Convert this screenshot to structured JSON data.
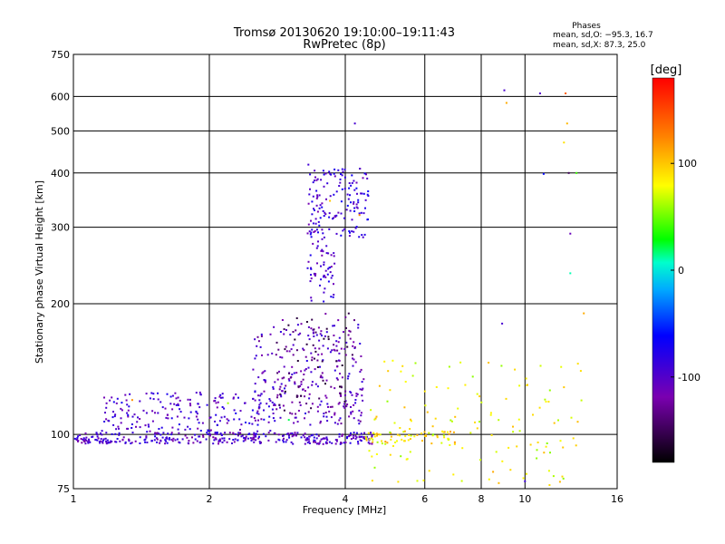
{
  "chart_data": {
    "type": "scatter",
    "title": "Tromsø 20130620 19:10:00–19:11:43",
    "subtitle": "RwPretec (8p)",
    "xlabel": "Frequency [MHz]",
    "ylabel": "Stationary phase Virtual Height [km]",
    "x_scale": "log",
    "y_scale": "log",
    "xlim": [
      1,
      16
    ],
    "ylim": [
      75,
      750
    ],
    "x_ticks": [
      1,
      2,
      4,
      6,
      8,
      10,
      16
    ],
    "x_tick_labels": [
      "1",
      "2",
      "4",
      "6",
      "8",
      "10",
      "16"
    ],
    "y_ticks": [
      75,
      100,
      200,
      300,
      400,
      500,
      600,
      750
    ],
    "y_tick_labels": [
      "75",
      "100",
      "200",
      "300",
      "400",
      "500",
      "600",
      "750"
    ],
    "grid": true,
    "legend": {
      "heading": "Phases",
      "lines": [
        "mean, sd,O: −95.3, 16.7",
        "mean, sd,X:  87.3, 25.0"
      ],
      "placement": "top-right"
    },
    "colorbar": {
      "label": "[deg]",
      "range": [
        -180,
        180
      ],
      "ticks": [
        100,
        0,
        -100
      ],
      "tick_labels": [
        "100",
        "0",
        "-100"
      ]
    },
    "traces": [
      {
        "x_range": [
          1.0,
          4.6
        ],
        "y_range": [
          95,
          101
        ],
        "phase": -100,
        "count": 340
      },
      {
        "x_range": [
          1.15,
          2.8
        ],
        "y_range": [
          100,
          125
        ],
        "phase": -95,
        "count": 200
      },
      {
        "x_range": [
          2.5,
          4.4
        ],
        "y_range": [
          105,
          180
        ],
        "phase": -105,
        "count": 260
      },
      {
        "x_range": [
          3.3,
          3.8
        ],
        "y_range": [
          200,
          420
        ],
        "phase": -95,
        "count": 130
      },
      {
        "x_range": [
          3.8,
          4.5
        ],
        "y_range": [
          280,
          410
        ],
        "phase": -90,
        "count": 80
      },
      {
        "x_range": [
          2.8,
          4.2
        ],
        "y_range": [
          110,
          190
        ],
        "phase": -140,
        "count": 90
      },
      {
        "x_range": [
          4.4,
          7.0
        ],
        "y_range": [
          95,
          102
        ],
        "phase": 90,
        "count": 60
      },
      {
        "x_range": [
          4.5,
          13.5
        ],
        "y_range": [
          76,
          150
        ],
        "phase": 80,
        "count": 130
      }
    ],
    "points": [
      [
        9.0,
        620,
        -95
      ],
      [
        9.1,
        580,
        110
      ],
      [
        10.8,
        610,
        -100
      ],
      [
        12.3,
        610,
        140
      ],
      [
        12.4,
        520,
        105
      ],
      [
        12.2,
        470,
        90
      ],
      [
        11.0,
        398,
        -60
      ],
      [
        12.5,
        400,
        -150
      ],
      [
        13.0,
        400,
        40
      ],
      [
        12.6,
        290,
        -110
      ],
      [
        12.6,
        235,
        10
      ],
      [
        13.5,
        190,
        110
      ],
      [
        8.9,
        180,
        -95
      ],
      [
        4.2,
        520,
        -95
      ],
      [
        4.3,
        320,
        120
      ],
      [
        3.7,
        345,
        100
      ],
      [
        3.0,
        108,
        20
      ],
      [
        2.2,
        118,
        60
      ],
      [
        1.35,
        120,
        120
      ],
      [
        10.0,
        78,
        -90
      ],
      [
        12.1,
        80,
        95
      ],
      [
        8.5,
        82,
        110
      ]
    ]
  }
}
